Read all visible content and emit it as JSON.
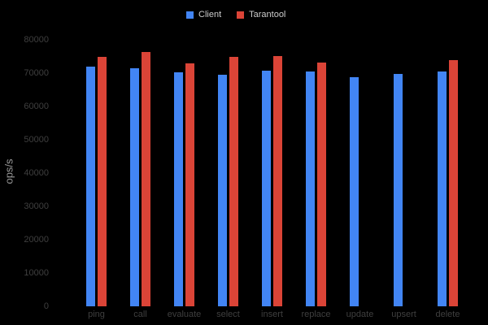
{
  "colors": {
    "background": "#000000",
    "client_bar": "#4285f4",
    "tarantool_bar": "#db4437",
    "tick_label": "#3f3f3f",
    "axis_title": "#9a9a9a",
    "legend_label": "#cccccc"
  },
  "legend": {
    "items": [
      {
        "label": "Client",
        "color": "#4285f4"
      },
      {
        "label": "Tarantool",
        "color": "#db4437"
      }
    ]
  },
  "chart_data": {
    "type": "bar",
    "title": "",
    "ylabel": "ops/s",
    "xlabel": "",
    "ylim": [
      0,
      80000
    ],
    "ytick_step": 10000,
    "ytick_labels": [
      "0",
      "10000",
      "20000",
      "30000",
      "40000",
      "50000",
      "60000",
      "70000",
      "80000"
    ],
    "grid": false,
    "legend_position": "top-center",
    "categories": [
      "ping",
      "call",
      "evaluate",
      "select",
      "insert",
      "replace",
      "update",
      "upsert",
      "delete"
    ],
    "series": [
      {
        "name": "Client",
        "color": "#4285f4",
        "values": [
          72000,
          71400,
          70300,
          69400,
          70800,
          70600,
          68700,
          69800,
          70400
        ]
      },
      {
        "name": "Tarantool",
        "color": "#db4437",
        "values": [
          75000,
          76300,
          72900,
          74900,
          75200,
          73200,
          null,
          null,
          73800
        ]
      }
    ]
  }
}
